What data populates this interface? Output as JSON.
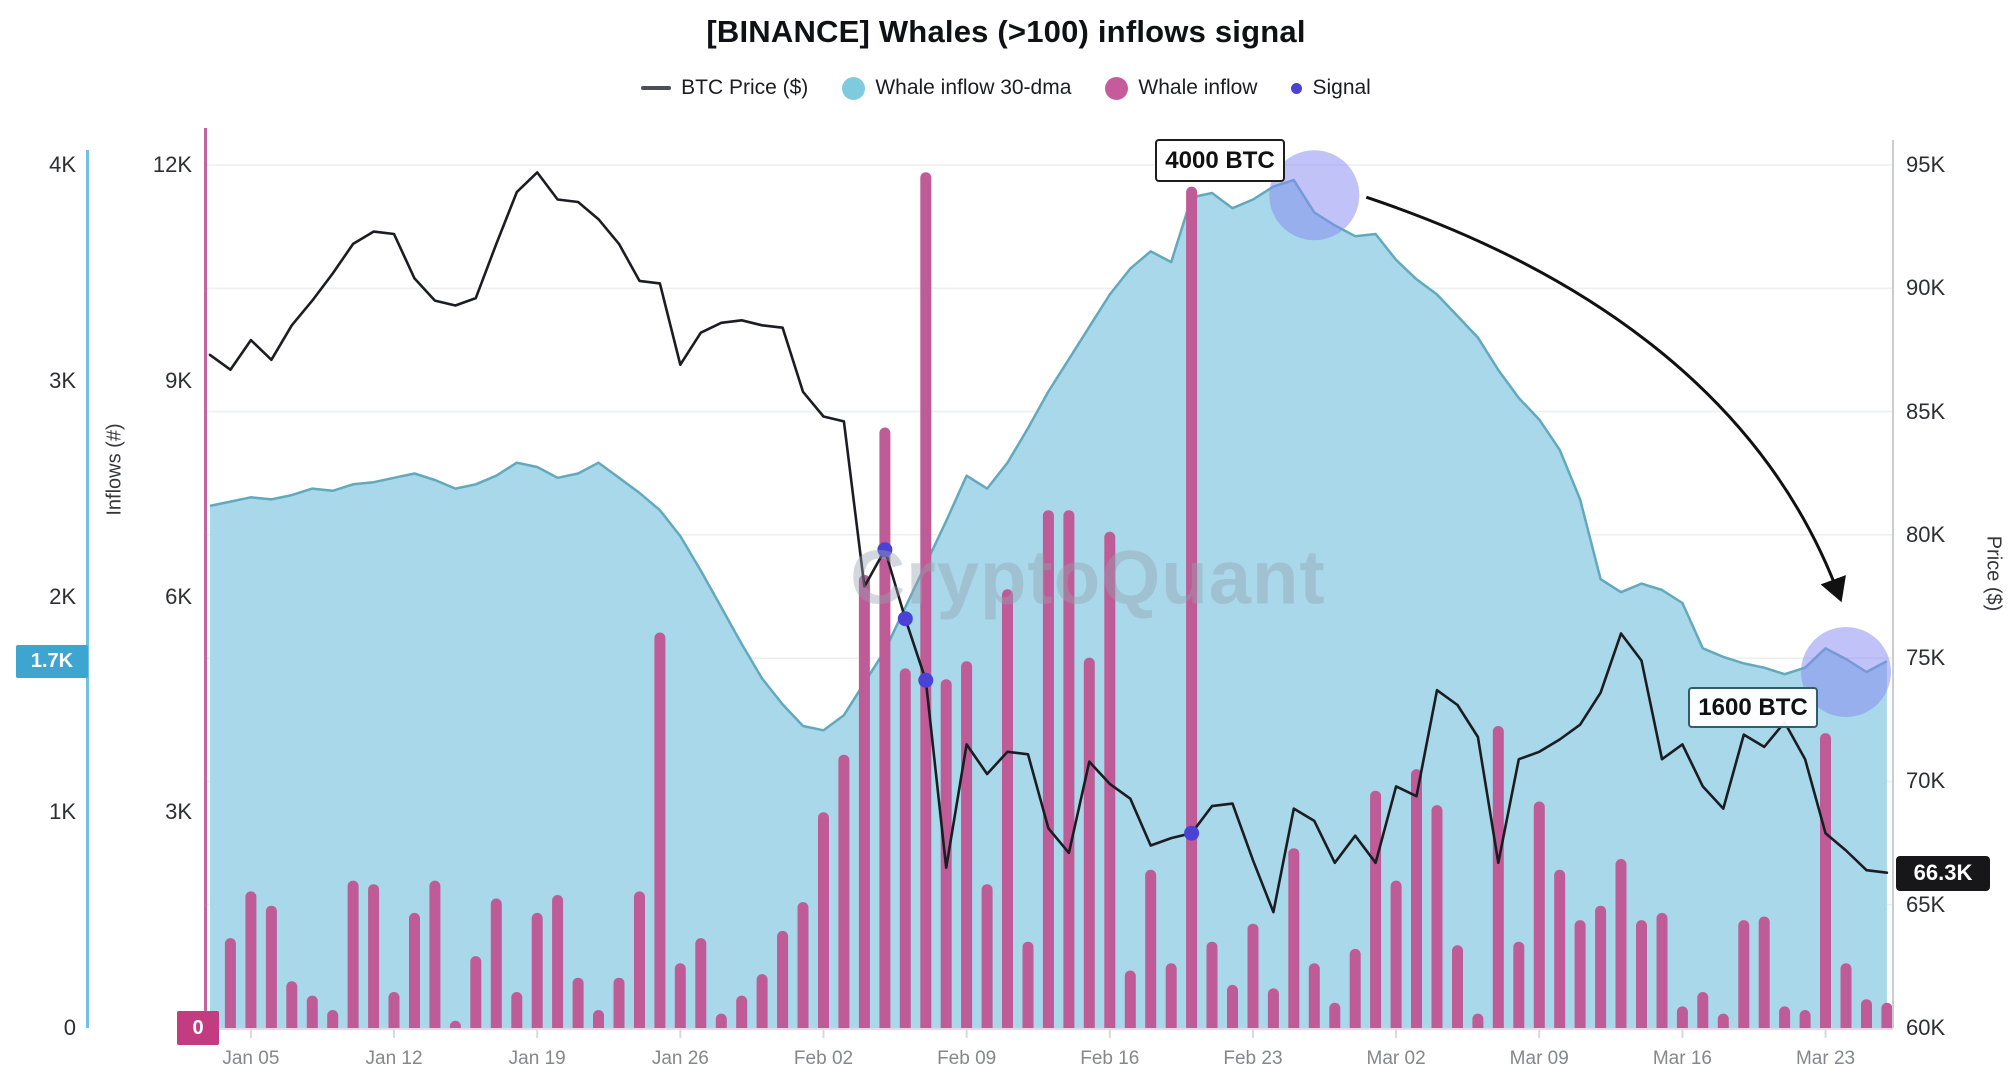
{
  "title": "[BINANCE] Whales (>100) inflows signal",
  "watermark": "CryptoQuant",
  "legend": [
    {
      "label": "BTC Price ($)",
      "swatch": "line",
      "color": "#4b4e54"
    },
    {
      "label": "Whale inflow 30-dma",
      "swatch": "circle",
      "color": "#7ecbe0"
    },
    {
      "label": "Whale inflow",
      "swatch": "circle",
      "color": "#c45c9c"
    },
    {
      "label": "Signal",
      "swatch": "dot",
      "color": "#4a42d4"
    }
  ],
  "axes": {
    "left_dma": {
      "title": "Inflows (#)",
      "ticks": [
        "4K",
        "3K",
        "2K",
        "1K",
        "0"
      ],
      "tick_values": [
        4,
        3,
        2,
        1,
        0
      ],
      "badge": "1.7K",
      "badge_value": 1.7,
      "color": "#6fc3de"
    },
    "left_bar": {
      "ticks": [
        "12K",
        "9K",
        "6K",
        "3K",
        "0"
      ],
      "tick_values": [
        12,
        9,
        6,
        3,
        0
      ],
      "badge": "0",
      "badge_value": 0,
      "color": "#c0659d"
    },
    "right_price": {
      "title": "Price ($)",
      "ticks": [
        "95K",
        "90K",
        "85K",
        "80K",
        "75K",
        "70K",
        "65K",
        "60K"
      ],
      "tick_values": [
        95,
        90,
        85,
        80,
        75,
        70,
        65,
        60
      ],
      "badge": "66.3K",
      "badge_value": 66.3,
      "color": "#c9ccd1"
    },
    "x": {
      "ticks": [
        "Jan 05",
        "Jan 12",
        "Jan 19",
        "Jan 26",
        "Feb 02",
        "Feb 09",
        "Feb 16",
        "Feb 23",
        "Mar 02",
        "Mar 09",
        "Mar 16",
        "Mar 23"
      ]
    }
  },
  "annotations": {
    "peak": {
      "text": "4000 BTC"
    },
    "end": {
      "text": "1600 BTC"
    },
    "highlights": [
      {
        "date": "Feb 26",
        "level": 3.86,
        "radius": 45
      },
      {
        "date": "Mar 24",
        "level": 1.65,
        "radius": 45
      }
    ]
  },
  "chart_data": {
    "type": "composite",
    "x": [
      "Jan 03",
      "Jan 04",
      "Jan 05",
      "Jan 06",
      "Jan 07",
      "Jan 08",
      "Jan 09",
      "Jan 10",
      "Jan 11",
      "Jan 12",
      "Jan 13",
      "Jan 14",
      "Jan 15",
      "Jan 16",
      "Jan 17",
      "Jan 18",
      "Jan 19",
      "Jan 20",
      "Jan 21",
      "Jan 22",
      "Jan 23",
      "Jan 24",
      "Jan 25",
      "Jan 26",
      "Jan 27",
      "Jan 28",
      "Jan 29",
      "Jan 30",
      "Jan 31",
      "Feb 01",
      "Feb 02",
      "Feb 03",
      "Feb 04",
      "Feb 05",
      "Feb 06",
      "Feb 07",
      "Feb 08",
      "Feb 09",
      "Feb 10",
      "Feb 11",
      "Feb 12",
      "Feb 13",
      "Feb 14",
      "Feb 15",
      "Feb 16",
      "Feb 17",
      "Feb 18",
      "Feb 19",
      "Feb 20",
      "Feb 21",
      "Feb 22",
      "Feb 23",
      "Feb 24",
      "Feb 25",
      "Feb 26",
      "Feb 27",
      "Feb 28",
      "Mar 01",
      "Mar 02",
      "Mar 03",
      "Mar 04",
      "Mar 05",
      "Mar 06",
      "Mar 07",
      "Mar 08",
      "Mar 09",
      "Mar 10",
      "Mar 11",
      "Mar 12",
      "Mar 13",
      "Mar 14",
      "Mar 15",
      "Mar 16",
      "Mar 17",
      "Mar 18",
      "Mar 19",
      "Mar 20",
      "Mar 21",
      "Mar 22",
      "Mar 23",
      "Mar 24",
      "Mar 25",
      "Mar 26"
    ],
    "series": [
      {
        "name": "BTC Price ($)",
        "type": "line",
        "axis": "right_price",
        "unit": "K USD",
        "color": "#1b1d22",
        "values": [
          87.3,
          86.7,
          87.9,
          87.1,
          88.5,
          89.5,
          90.6,
          91.8,
          92.3,
          92.2,
          90.4,
          89.5,
          89.3,
          89.6,
          91.8,
          93.9,
          94.7,
          93.6,
          93.5,
          92.8,
          91.8,
          90.3,
          90.2,
          86.9,
          88.2,
          88.6,
          88.7,
          88.5,
          88.4,
          85.8,
          84.8,
          84.6,
          77.9,
          79.4,
          76.6,
          74.1,
          66.5,
          71.5,
          70.3,
          71.2,
          71.1,
          68.1,
          67.1,
          70.8,
          69.9,
          69.3,
          67.4,
          67.7,
          67.9,
          69.0,
          69.1,
          66.8,
          64.7,
          68.9,
          68.4,
          66.7,
          67.8,
          66.7,
          69.8,
          69.4,
          73.7,
          73.1,
          71.8,
          66.7,
          70.9,
          71.2,
          71.7,
          72.3,
          73.6,
          76.0,
          74.9,
          70.9,
          71.5,
          69.8,
          68.9,
          71.9,
          71.4,
          72.4,
          70.9,
          67.9,
          67.2,
          66.4,
          66.3
        ]
      },
      {
        "name": "Whale inflow 30-dma",
        "type": "area",
        "axis": "left_dma",
        "unit": "K BTC",
        "color": "#a8d8e9",
        "edge_color": "#62a9bd",
        "values": [
          2.42,
          2.44,
          2.46,
          2.45,
          2.47,
          2.5,
          2.49,
          2.52,
          2.53,
          2.55,
          2.57,
          2.54,
          2.5,
          2.52,
          2.56,
          2.62,
          2.6,
          2.55,
          2.57,
          2.62,
          2.55,
          2.48,
          2.4,
          2.28,
          2.12,
          1.95,
          1.78,
          1.62,
          1.5,
          1.4,
          1.38,
          1.45,
          1.6,
          1.75,
          1.95,
          2.15,
          2.35,
          2.56,
          2.5,
          2.62,
          2.78,
          2.95,
          3.1,
          3.25,
          3.4,
          3.52,
          3.6,
          3.55,
          3.85,
          3.87,
          3.8,
          3.84,
          3.9,
          3.93,
          3.78,
          3.72,
          3.67,
          3.68,
          3.56,
          3.47,
          3.4,
          3.3,
          3.2,
          3.05,
          2.92,
          2.82,
          2.68,
          2.45,
          2.08,
          2.02,
          2.06,
          2.03,
          1.97,
          1.76,
          1.72,
          1.69,
          1.67,
          1.64,
          1.67,
          1.76,
          1.71,
          1.65,
          1.7
        ]
      },
      {
        "name": "Whale inflow",
        "type": "bar",
        "axis": "left_bar",
        "unit": "K BTC",
        "color": "#bf5c97",
        "values": [
          0.15,
          1.25,
          1.9,
          1.7,
          0.65,
          0.45,
          0.25,
          2.05,
          2.0,
          0.5,
          1.6,
          2.05,
          0.1,
          1.0,
          1.8,
          0.5,
          1.6,
          1.85,
          0.7,
          0.25,
          0.7,
          1.9,
          5.5,
          0.9,
          1.25,
          0.2,
          0.45,
          0.75,
          1.35,
          1.75,
          3.0,
          3.8,
          6.3,
          8.35,
          5.0,
          11.9,
          4.85,
          5.1,
          2.0,
          6.1,
          1.2,
          7.2,
          7.2,
          5.15,
          6.9,
          0.8,
          2.2,
          0.9,
          11.7,
          1.2,
          0.6,
          1.45,
          0.55,
          2.5,
          0.9,
          0.35,
          1.1,
          3.3,
          2.05,
          3.6,
          3.1,
          1.15,
          0.2,
          4.2,
          1.2,
          3.15,
          2.2,
          1.5,
          1.7,
          2.35,
          1.5,
          1.6,
          0.3,
          0.5,
          0.2,
          1.5,
          1.55,
          0.3,
          0.25,
          4.1,
          0.9,
          0.4,
          0.35
        ]
      },
      {
        "name": "Signal",
        "type": "scatter",
        "axis": "right_price",
        "unit": "K USD",
        "color": "#4a42d4",
        "points": [
          {
            "date": "Feb 05",
            "value": 79.4
          },
          {
            "date": "Feb 06",
            "value": 76.6
          },
          {
            "date": "Feb 07",
            "value": 74.1
          },
          {
            "date": "Feb 20",
            "value": 67.9
          }
        ]
      }
    ],
    "axis_ranges": {
      "right_price": [
        60,
        95
      ],
      "left_dma": [
        0,
        4
      ],
      "left_bar": [
        0,
        12
      ]
    },
    "grid": "horizontal-right-axis-ticks",
    "legend_position": "top-center"
  }
}
